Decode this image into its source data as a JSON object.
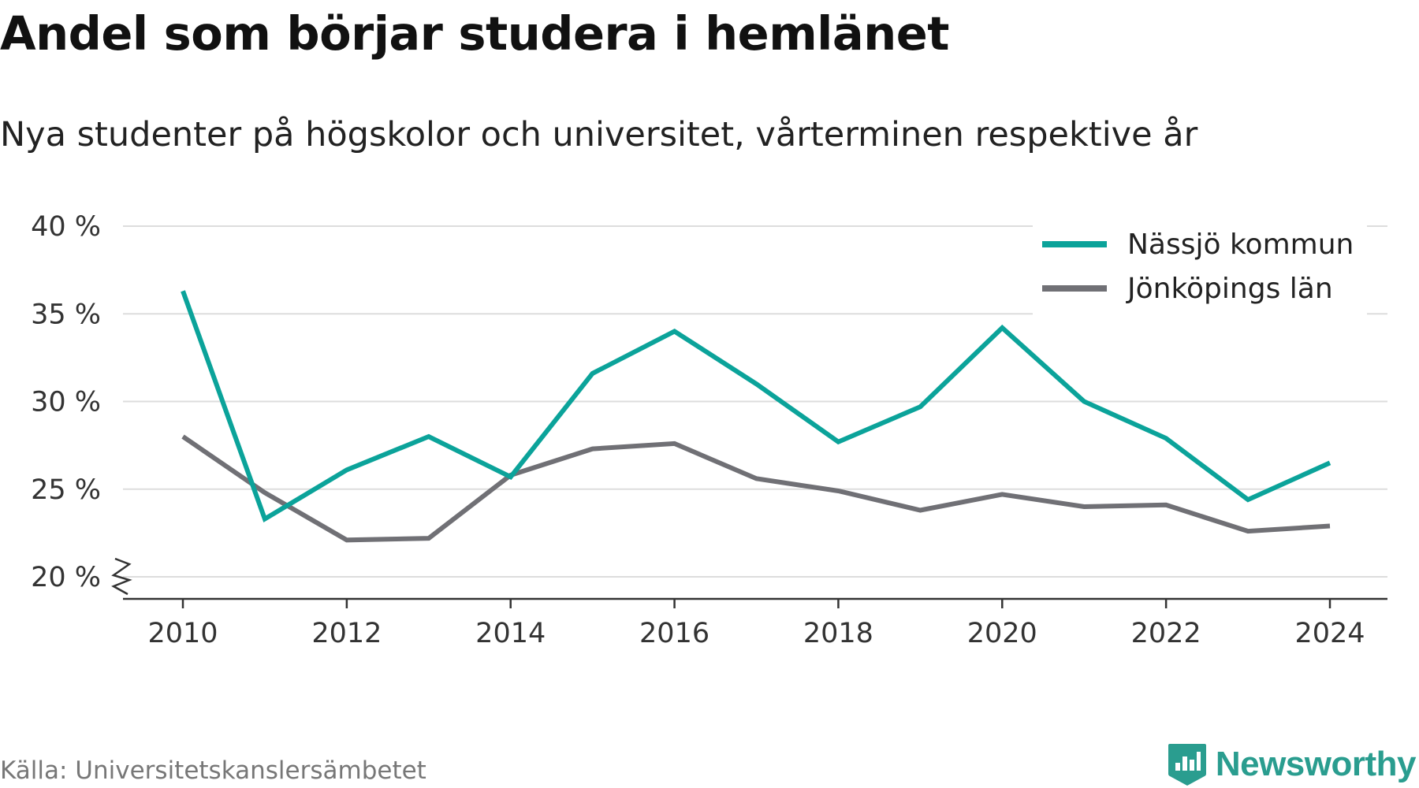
{
  "header": {
    "title": "Andel som börjar studera i hemlänet",
    "subtitle": "Nya studenter på högskolor och universitet, vårterminen respektive år"
  },
  "chart_data": {
    "type": "line",
    "title": "Andel som börjar studera i hemlänet",
    "subtitle": "Nya studenter på högskolor och universitet, vårterminen respektive år",
    "xlabel": "",
    "ylabel": "",
    "x": [
      2010,
      2011,
      2012,
      2013,
      2014,
      2015,
      2016,
      2017,
      2018,
      2019,
      2020,
      2021,
      2022,
      2023,
      2024
    ],
    "x_ticks": [
      "2010",
      "2012",
      "2014",
      "2016",
      "2018",
      "2020",
      "2022",
      "2024"
    ],
    "y_ticks": [
      "20 %",
      "25 %",
      "30 %",
      "35 %",
      "40 %"
    ],
    "ylim": [
      20,
      40
    ],
    "y_axis_break": true,
    "grid": true,
    "legend_position": "top-right",
    "series": [
      {
        "name": "Nässjö kommun",
        "color": "#0ba39a",
        "values": [
          36.3,
          23.3,
          26.1,
          28.0,
          25.7,
          31.6,
          34.0,
          31.0,
          27.7,
          29.7,
          34.2,
          30.0,
          27.9,
          24.4,
          26.5
        ]
      },
      {
        "name": "Jönköpings län",
        "color": "#707075",
        "values": [
          28.0,
          24.8,
          22.1,
          22.2,
          25.8,
          27.3,
          27.6,
          25.6,
          24.9,
          23.8,
          24.7,
          24.0,
          24.1,
          22.6,
          22.9
        ]
      }
    ]
  },
  "footer": {
    "source": "Källa: Universitetskanslersämbetet",
    "brand": "Newsworthy",
    "brand_color": "#2a9d8f",
    "brand_icon": "newsworthy-logo-icon"
  }
}
